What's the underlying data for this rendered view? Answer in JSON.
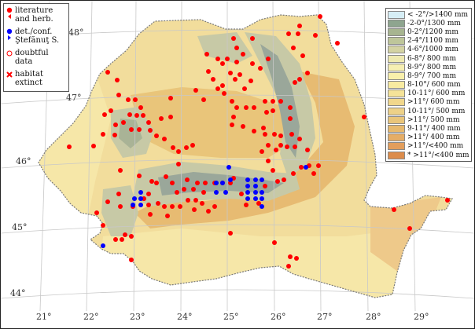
{
  "map": {
    "latitude_labels": [
      "48°",
      "47°",
      "46°",
      "45°",
      "44°"
    ],
    "longitude_labels": [
      "21°",
      "22°",
      "23°",
      "24°",
      "25°",
      "26°",
      "27°",
      "28°",
      "29°"
    ],
    "colors": {
      "background": "#ffffff",
      "country_base": "#f2dd9c",
      "lowland": "#f6e7a8",
      "hills": "#e9c57a",
      "mountains_dark": "#9aa79a",
      "mountains_light": "#c7c9a6",
      "grid": "#c8c8c8",
      "border": "#7a7a7a",
      "red_marker": "#ff0000",
      "blue_marker": "#0000ff"
    }
  },
  "legend_left": [
    {
      "label": "literature\nand herb.",
      "symbol": "red-dot",
      "color": "#ff0000"
    },
    {
      "label": "det./conf.\nŞtefănuţ S.",
      "symbol": "blue-dot",
      "color": "#0000ff"
    },
    {
      "label": "doubtful\ndata",
      "symbol": "open-red-circle",
      "color": "#ff0000"
    },
    {
      "label": "habitat\nextinct",
      "symbol": "red-x",
      "color": "#ff0000"
    }
  ],
  "legend_right": [
    {
      "label": "< -2°/>1400 mm",
      "color": "#d6eef6"
    },
    {
      "label": "-2-0°/1300 mm",
      "color": "#8ea58f"
    },
    {
      "label": "0-2°/1200 mm",
      "color": "#a7b590"
    },
    {
      "label": "2-4°/1100 mm",
      "color": "#bec69a"
    },
    {
      "label": "4-6°/1000 mm",
      "color": "#d4d3a3"
    },
    {
      "label": "6-8°/ 800 mm",
      "color": "#eee9b0"
    },
    {
      "label": "8-9°/ 800 mm",
      "color": "#f6efb2"
    },
    {
      "label": "8-9°/ 700 mm",
      "color": "#f9f0ab"
    },
    {
      "label": "8-10°/ 600 mm",
      "color": "#f8eba1"
    },
    {
      "label": "10-11°/ 600 mm",
      "color": "#f5e398"
    },
    {
      "label": ">11°/ 600 mm",
      "color": "#f1d78c"
    },
    {
      "label": "10-11°/ 500 mm",
      "color": "#edd188"
    },
    {
      "label": ">11°/ 500 mm",
      "color": "#e9c57a"
    },
    {
      "label": "9-11°/ 400 mm",
      "color": "#e7b96d"
    },
    {
      "label": ">11°/ 400 mm",
      "color": "#e5ad66"
    },
    {
      "label": ">11°/<400 mm",
      "color": "#e39e5c"
    },
    {
      "label": "* >11°/<400 mm",
      "color": "#dc8c4b"
    }
  ]
}
